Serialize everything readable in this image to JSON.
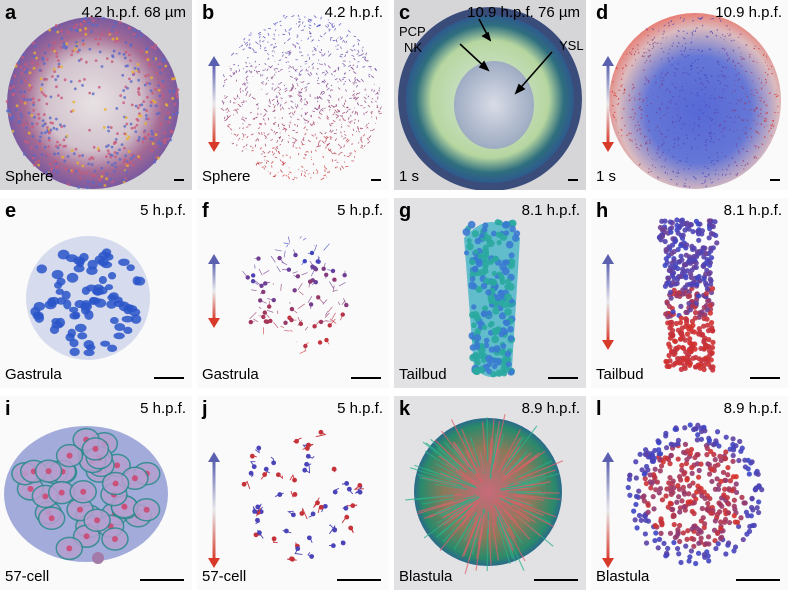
{
  "colors": {
    "arrow_top": "#5a5fb0",
    "arrow_bottom": "#d83a2a",
    "nucleus_blue": "#2a55c8",
    "nucleus_red": "#d6302a",
    "tissue_green": "#2aa88a"
  },
  "panels": [
    {
      "label": "a",
      "time": "4.2 h.p.f. 68 µm",
      "stage": "Sphere"
    },
    {
      "label": "b",
      "time": "4.2 h.p.f.",
      "stage": "Sphere"
    },
    {
      "label": "c",
      "time": "10.9 h.p.f. 76 µm",
      "stage": "1 s"
    },
    {
      "label": "d",
      "time": "10.9 h.p.f.",
      "stage": "1 s"
    },
    {
      "label": "e",
      "time": "5 h.p.f.",
      "stage": "Gastrula"
    },
    {
      "label": "f",
      "time": "5 h.p.f.",
      "stage": "Gastrula"
    },
    {
      "label": "g",
      "time": "8.1 h.p.f.",
      "stage": "Tailbud"
    },
    {
      "label": "h",
      "time": "8.1 h.p.f.",
      "stage": "Tailbud"
    },
    {
      "label": "i",
      "time": "5 h.p.f.",
      "stage": "57-cell"
    },
    {
      "label": "j",
      "time": "5 h.p.f.",
      "stage": "57-cell"
    },
    {
      "label": "k",
      "time": "8.9 h.p.f.",
      "stage": "Blastula"
    },
    {
      "label": "l",
      "time": "8.9 h.p.f.",
      "stage": "Blastula"
    }
  ],
  "annotations": {
    "pcp": "PCP",
    "nk": "NK",
    "ysl": "YSL"
  }
}
